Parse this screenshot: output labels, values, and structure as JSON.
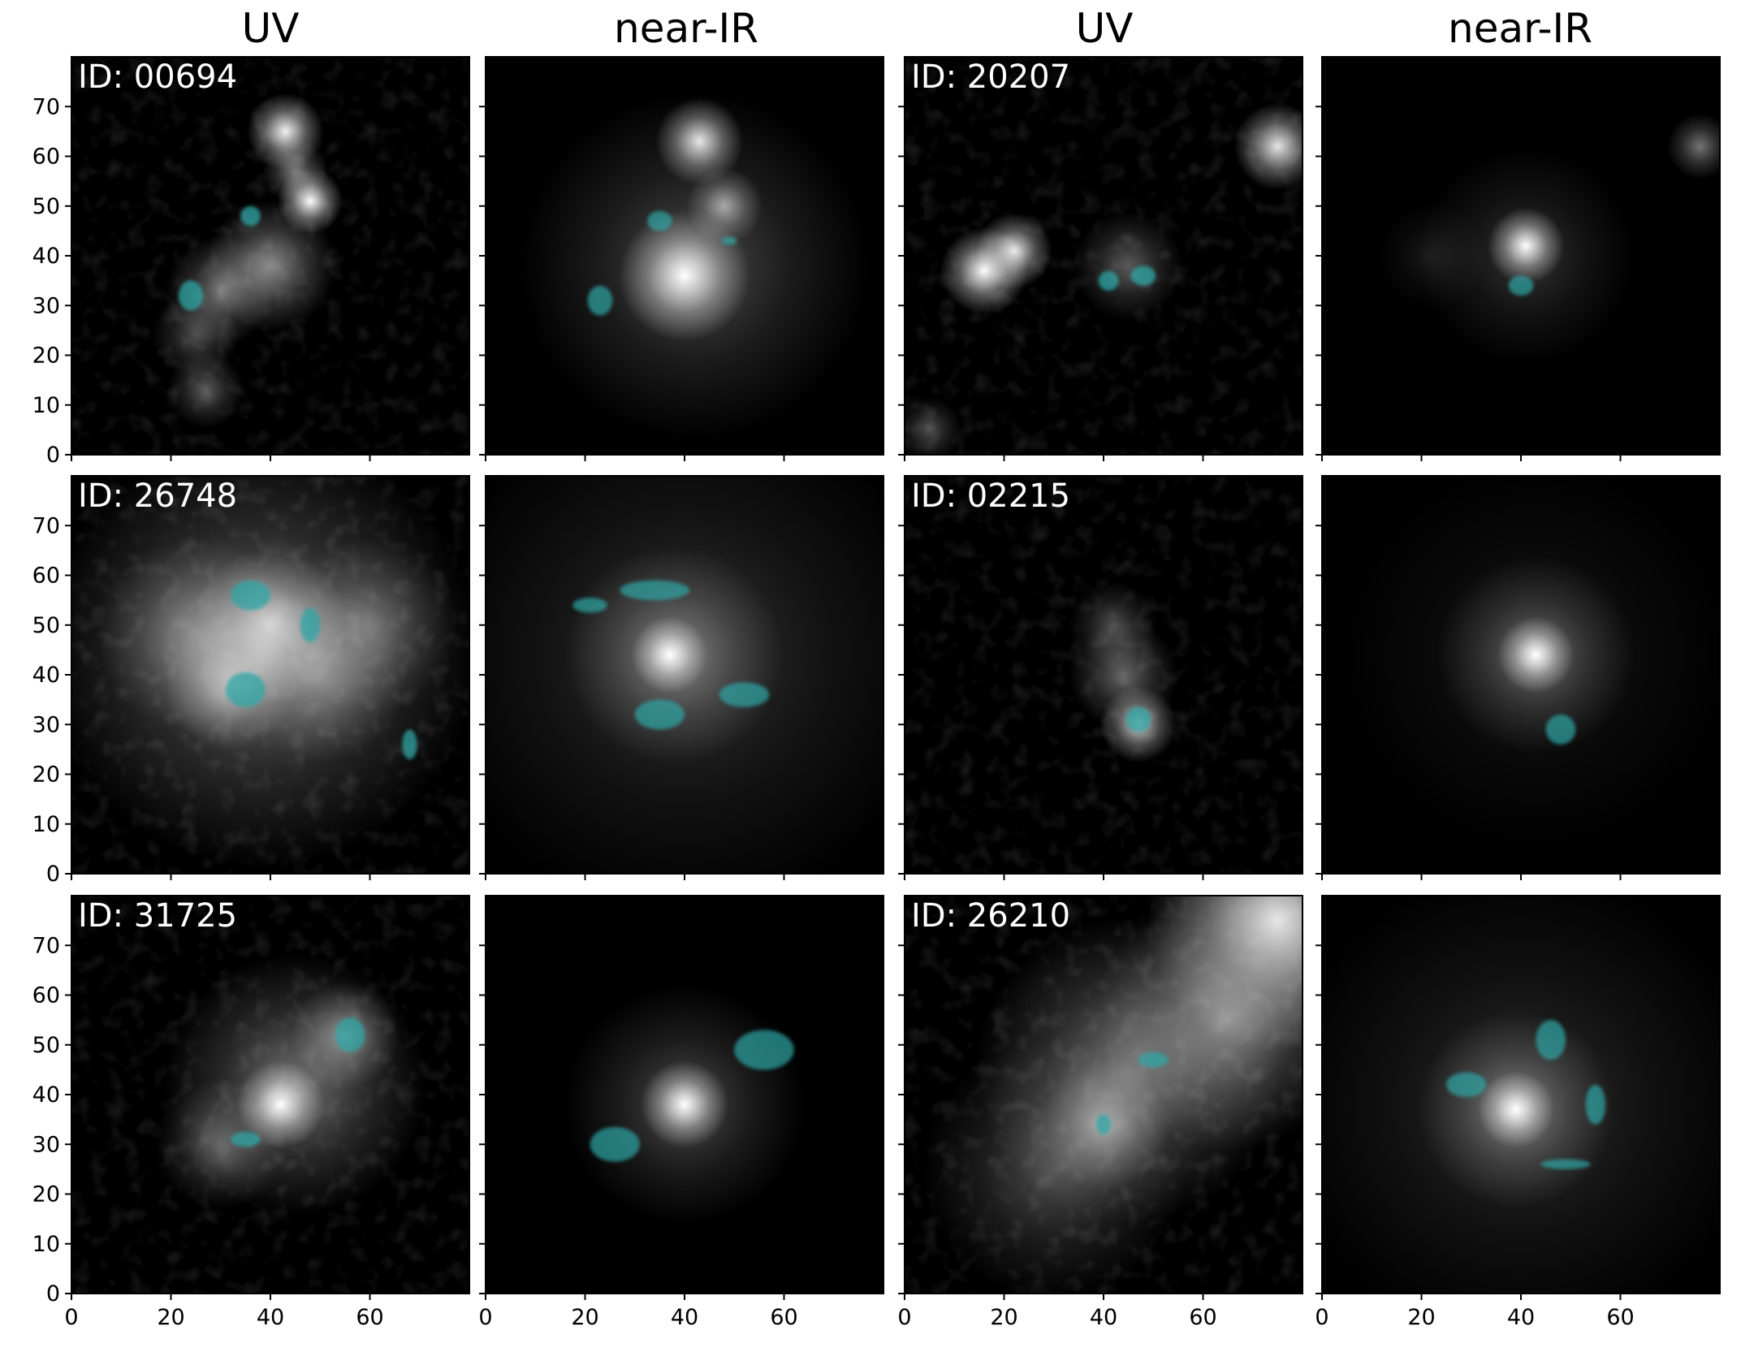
{
  "figure": {
    "column_titles": [
      "UV",
      "near-IR",
      "UV",
      "near-IR"
    ],
    "x_ticks": [
      "0",
      "20",
      "40",
      "60"
    ],
    "y_ticks": [
      "0",
      "10",
      "20",
      "30",
      "40",
      "50",
      "60",
      "70"
    ],
    "overlay_color": "#2fa6a6",
    "background_color": "#000000"
  },
  "rows": [
    {
      "objects": [
        {
          "id_label": "ID: 00694",
          "uv": {
            "sources": [
              {
                "x": 43,
                "y": 65,
                "r": 3.5,
                "b": 0.95
              },
              {
                "x": 48,
                "y": 51,
                "r": 3,
                "b": 1.0
              },
              {
                "x": 40,
                "y": 38,
                "r": 6,
                "b": 0.55
              },
              {
                "x": 30,
                "y": 33,
                "r": 5,
                "b": 0.45
              },
              {
                "x": 25,
                "y": 24,
                "r": 4,
                "b": 0.3
              },
              {
                "x": 27,
                "y": 13,
                "r": 3.5,
                "b": 0.35
              },
              {
                "x": 45,
                "y": 57,
                "r": 3,
                "b": 0.5
              }
            ],
            "clumps": [
              {
                "x": 36,
                "y": 48,
                "rx": 2,
                "ry": 2
              },
              {
                "x": 24,
                "y": 32,
                "rx": 2.5,
                "ry": 3
              }
            ]
          },
          "nir": {
            "sources": [
              {
                "x": 43,
                "y": 63,
                "r": 4,
                "b": 0.9
              },
              {
                "x": 48,
                "y": 50,
                "r": 3.5,
                "b": 0.6
              },
              {
                "x": 40,
                "y": 36,
                "r": 6,
                "b": 1.0
              },
              {
                "x": 42,
                "y": 38,
                "r": 16,
                "b": 0.3
              }
            ],
            "clumps": [
              {
                "x": 35,
                "y": 47,
                "rx": 2.5,
                "ry": 2
              },
              {
                "x": 23,
                "y": 31,
                "rx": 2.5,
                "ry": 3
              },
              {
                "x": 49,
                "y": 43,
                "rx": 1.5,
                "ry": 0.8
              }
            ]
          }
        },
        {
          "id_label": "ID: 20207",
          "uv": {
            "sources": [
              {
                "x": 16,
                "y": 37,
                "r": 4,
                "b": 1.0
              },
              {
                "x": 22,
                "y": 41,
                "r": 3.5,
                "b": 0.9
              },
              {
                "x": 75,
                "y": 62,
                "r": 4,
                "b": 0.9
              },
              {
                "x": 45,
                "y": 38,
                "r": 5,
                "b": 0.35
              },
              {
                "x": 5,
                "y": 5,
                "r": 3,
                "b": 0.3
              }
            ],
            "clumps": [
              {
                "x": 41,
                "y": 35,
                "rx": 2,
                "ry": 2
              },
              {
                "x": 48,
                "y": 36,
                "rx": 2.5,
                "ry": 2
              }
            ]
          },
          "nir": {
            "sources": [
              {
                "x": 41,
                "y": 42,
                "r": 3.5,
                "b": 1.0
              },
              {
                "x": 41,
                "y": 40,
                "r": 10,
                "b": 0.2
              },
              {
                "x": 76,
                "y": 62,
                "r": 3,
                "b": 0.45
              },
              {
                "x": 22,
                "y": 40,
                "r": 5,
                "b": 0.1
              }
            ],
            "clumps": [
              {
                "x": 40,
                "y": 34,
                "rx": 2.5,
                "ry": 2
              }
            ]
          }
        }
      ]
    },
    {
      "objects": [
        {
          "id_label": "ID: 26748",
          "uv": {
            "sources": [
              {
                "x": 38,
                "y": 45,
                "r": 20,
                "b": 0.45
              },
              {
                "x": 40,
                "y": 50,
                "r": 7,
                "b": 0.7
              },
              {
                "x": 32,
                "y": 38,
                "r": 6,
                "b": 0.6
              },
              {
                "x": 50,
                "y": 40,
                "r": 8,
                "b": 0.4
              },
              {
                "x": 60,
                "y": 50,
                "r": 8,
                "b": 0.35
              },
              {
                "x": 25,
                "y": 48,
                "r": 9,
                "b": 0.4
              }
            ],
            "clumps": [
              {
                "x": 36,
                "y": 56,
                "rx": 4,
                "ry": 3
              },
              {
                "x": 48,
                "y": 50,
                "rx": 2,
                "ry": 3.5
              },
              {
                "x": 35,
                "y": 37,
                "rx": 4,
                "ry": 3.5
              },
              {
                "x": 68,
                "y": 26,
                "rx": 1.5,
                "ry": 3
              }
            ]
          },
          "nir": {
            "sources": [
              {
                "x": 37,
                "y": 44,
                "r": 3.5,
                "b": 1.0
              },
              {
                "x": 38,
                "y": 44,
                "r": 10,
                "b": 0.4
              },
              {
                "x": 40,
                "y": 44,
                "r": 24,
                "b": 0.2
              }
            ],
            "clumps": [
              {
                "x": 21,
                "y": 54,
                "rx": 3.5,
                "ry": 1.5
              },
              {
                "x": 34,
                "y": 57,
                "rx": 7,
                "ry": 2
              },
              {
                "x": 35,
                "y": 32,
                "rx": 5,
                "ry": 3
              },
              {
                "x": 52,
                "y": 36,
                "rx": 5,
                "ry": 2.5
              }
            ]
          }
        },
        {
          "id_label": "ID: 02215",
          "uv": {
            "sources": [
              {
                "x": 44,
                "y": 40,
                "r": 5,
                "b": 0.4
              },
              {
                "x": 47,
                "y": 30,
                "r": 3.5,
                "b": 0.8
              },
              {
                "x": 42,
                "y": 50,
                "r": 4,
                "b": 0.3
              }
            ],
            "clumps": [
              {
                "x": 47,
                "y": 31,
                "rx": 2.5,
                "ry": 2.5
              }
            ]
          },
          "nir": {
            "sources": [
              {
                "x": 43,
                "y": 44,
                "r": 3.5,
                "b": 1.0
              },
              {
                "x": 43,
                "y": 44,
                "r": 9,
                "b": 0.35
              },
              {
                "x": 43,
                "y": 44,
                "r": 18,
                "b": 0.1
              }
            ],
            "clumps": [
              {
                "x": 48,
                "y": 29,
                "rx": 3,
                "ry": 3
              }
            ]
          }
        }
      ]
    },
    {
      "objects": [
        {
          "id_label": "ID: 31725",
          "uv": {
            "sources": [
              {
                "x": 42,
                "y": 38,
                "r": 4,
                "b": 1.0
              },
              {
                "x": 45,
                "y": 42,
                "r": 12,
                "b": 0.45
              },
              {
                "x": 30,
                "y": 30,
                "r": 6,
                "b": 0.35
              },
              {
                "x": 55,
                "y": 52,
                "r": 5,
                "b": 0.5
              }
            ],
            "clumps": [
              {
                "x": 56,
                "y": 52,
                "rx": 3,
                "ry": 3.5
              },
              {
                "x": 35,
                "y": 31,
                "rx": 3,
                "ry": 1.5
              }
            ]
          },
          "nir": {
            "sources": [
              {
                "x": 40,
                "y": 38,
                "r": 4,
                "b": 1.0
              },
              {
                "x": 40,
                "y": 38,
                "r": 11,
                "b": 0.3
              }
            ],
            "clumps": [
              {
                "x": 56,
                "y": 49,
                "rx": 6,
                "ry": 4
              },
              {
                "x": 26,
                "y": 30,
                "rx": 5,
                "ry": 3.5
              }
            ]
          }
        },
        {
          "id_label": "ID: 26210",
          "uv": {
            "sources": [
              {
                "x": 75,
                "y": 75,
                "r": 12,
                "b": 0.9
              },
              {
                "x": 65,
                "y": 55,
                "r": 12,
                "b": 0.5
              },
              {
                "x": 45,
                "y": 45,
                "r": 14,
                "b": 0.45
              },
              {
                "x": 40,
                "y": 34,
                "r": 6,
                "b": 0.5
              },
              {
                "x": 30,
                "y": 25,
                "r": 12,
                "b": 0.3
              }
            ],
            "clumps": [
              {
                "x": 50,
                "y": 47,
                "rx": 3,
                "ry": 1.5
              },
              {
                "x": 40,
                "y": 34,
                "rx": 1.5,
                "ry": 2
              }
            ]
          },
          "nir": {
            "sources": [
              {
                "x": 39,
                "y": 37,
                "r": 3.5,
                "b": 1.0
              },
              {
                "x": 39,
                "y": 37,
                "r": 9,
                "b": 0.4
              },
              {
                "x": 40,
                "y": 38,
                "r": 22,
                "b": 0.18
              }
            ],
            "clumps": [
              {
                "x": 29,
                "y": 42,
                "rx": 4,
                "ry": 2.5
              },
              {
                "x": 46,
                "y": 51,
                "rx": 3,
                "ry": 4
              },
              {
                "x": 55,
                "y": 38,
                "rx": 2,
                "ry": 4
              },
              {
                "x": 49,
                "y": 26,
                "rx": 5,
                "ry": 1
              }
            ]
          }
        }
      ]
    }
  ]
}
